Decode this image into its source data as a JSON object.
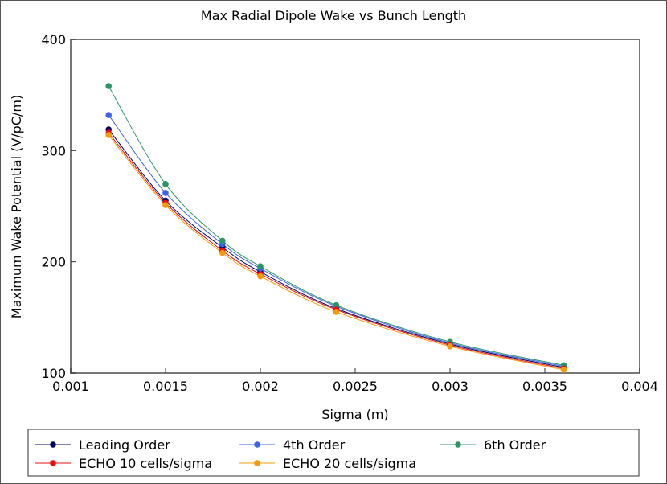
{
  "chart_data": {
    "type": "line",
    "title": "Max Radial Dipole Wake vs Bunch Length",
    "xlabel": "Sigma (m)",
    "ylabel": "Maximum Wake Potential (V/pC/m)",
    "xlim": [
      0.001,
      0.004
    ],
    "ylim": [
      100,
      400
    ],
    "x_ticks": [
      0.001,
      0.0015,
      0.002,
      0.0025,
      0.003,
      0.0035,
      0.004
    ],
    "x_tick_labels": [
      "0.001",
      "0.0015",
      "0.002",
      "0.0025",
      "0.003",
      "0.0035",
      "0.004"
    ],
    "y_ticks": [
      100,
      200,
      300,
      400
    ],
    "y_tick_labels": [
      "100",
      "200",
      "300",
      "400"
    ],
    "grid": false,
    "legend_position": "bottom",
    "x": [
      0.0012,
      0.0015,
      0.0018,
      0.002,
      0.0024,
      0.003,
      0.0036
    ],
    "series": [
      {
        "name": "Leading Order",
        "color": "#000066",
        "values": [
          319,
          255,
          213,
          191,
          158,
          126,
          105
        ]
      },
      {
        "name": "4th Order",
        "color": "#3a63e8",
        "values": [
          332,
          262,
          216,
          194,
          160,
          127,
          106
        ]
      },
      {
        "name": "6th Order",
        "color": "#2e9468",
        "values": [
          358,
          270,
          219,
          196,
          161,
          128,
          107
        ]
      },
      {
        "name": "ECHO 10 cells/sigma",
        "color": "#e81010",
        "values": [
          316,
          253,
          210,
          189,
          157,
          125,
          104
        ]
      },
      {
        "name": "ECHO 20 cells/sigma",
        "color": "#f59a0a",
        "values": [
          314,
          251,
          208,
          187,
          155,
          124,
          103
        ]
      }
    ]
  }
}
